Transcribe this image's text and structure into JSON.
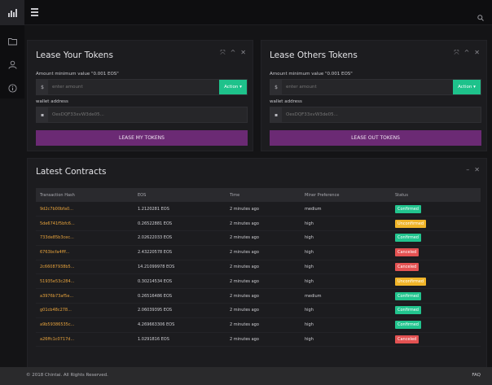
{
  "lease_your": {
    "title": "Lease Your Tokens",
    "amount_label": "Amount minimum value \"0.001 EOS\"",
    "currency_symbol": "$",
    "amount_placeholder": "enter amount",
    "action_label": "Action ▾",
    "wallet_label": "wallet address",
    "wallet_placeholder": "OesDQF33xvW3de05...",
    "button_label": "LEASE MY TOKENS"
  },
  "lease_others": {
    "title": "Lease Others Tokens",
    "amount_label": "Amount minimum value \"0.001 EOS\"",
    "currency_symbol": "$",
    "amount_placeholder": "enter amount",
    "action_label": "Action ▾",
    "wallet_label": "wallet address",
    "wallet_placeholder": "OesDQF33xvW3de05...",
    "button_label": "LEASE OUT TOKENS"
  },
  "contracts": {
    "title": "Latest Contracts",
    "columns": [
      "Transaction Hash",
      "EOS",
      "Time",
      "Miner Preference",
      "Status"
    ],
    "rows": [
      [
        "9d2c7b00bfa0...",
        "1.2120281 EOS",
        "2 minutes ago",
        "medium",
        "Confirmed"
      ],
      [
        "5de6741f5bfc6...",
        "0.26522881 EOS",
        "2 minutes ago",
        "high",
        "Unconfirmed"
      ],
      [
        "733de85b3cec...",
        "2.02622033 EOS",
        "2 minutes ago",
        "high",
        "Confirmed"
      ],
      [
        "6763bcfa4fff...",
        "2.43220578 EOS",
        "2 minutes ago",
        "high",
        "Canceled"
      ],
      [
        "2c66087938b5...",
        "14.21099978 EOS",
        "2 minutes ago",
        "high",
        "Canceled"
      ],
      [
        "51935e53c284...",
        "0.30214534 EOS",
        "2 minutes ago",
        "high",
        "Unconfirmed"
      ],
      [
        "a3976b73af5e...",
        "0.26516486 EOS",
        "2 minutes ago",
        "medium",
        "Confirmed"
      ],
      [
        "g01cb48c278...",
        "2.06039395 EOS",
        "2 minutes ago",
        "high",
        "Confirmed"
      ],
      [
        "a9b59386535c...",
        "4.269663306 EOS",
        "2 minutes ago",
        "high",
        "Confirmed"
      ],
      [
        "a26ffc1c0717d...",
        "1.0291816 EOS",
        "2 minutes ago",
        "high",
        "Canceled"
      ]
    ]
  },
  "status_colors": {
    "Confirmed": "#22c48e",
    "Unconfirmed": "#f0b429",
    "Canceled": "#e35252"
  },
  "footer": {
    "copyright": "© 2018 Chintai. All Rights Reserved.",
    "faq": "FAQ"
  }
}
